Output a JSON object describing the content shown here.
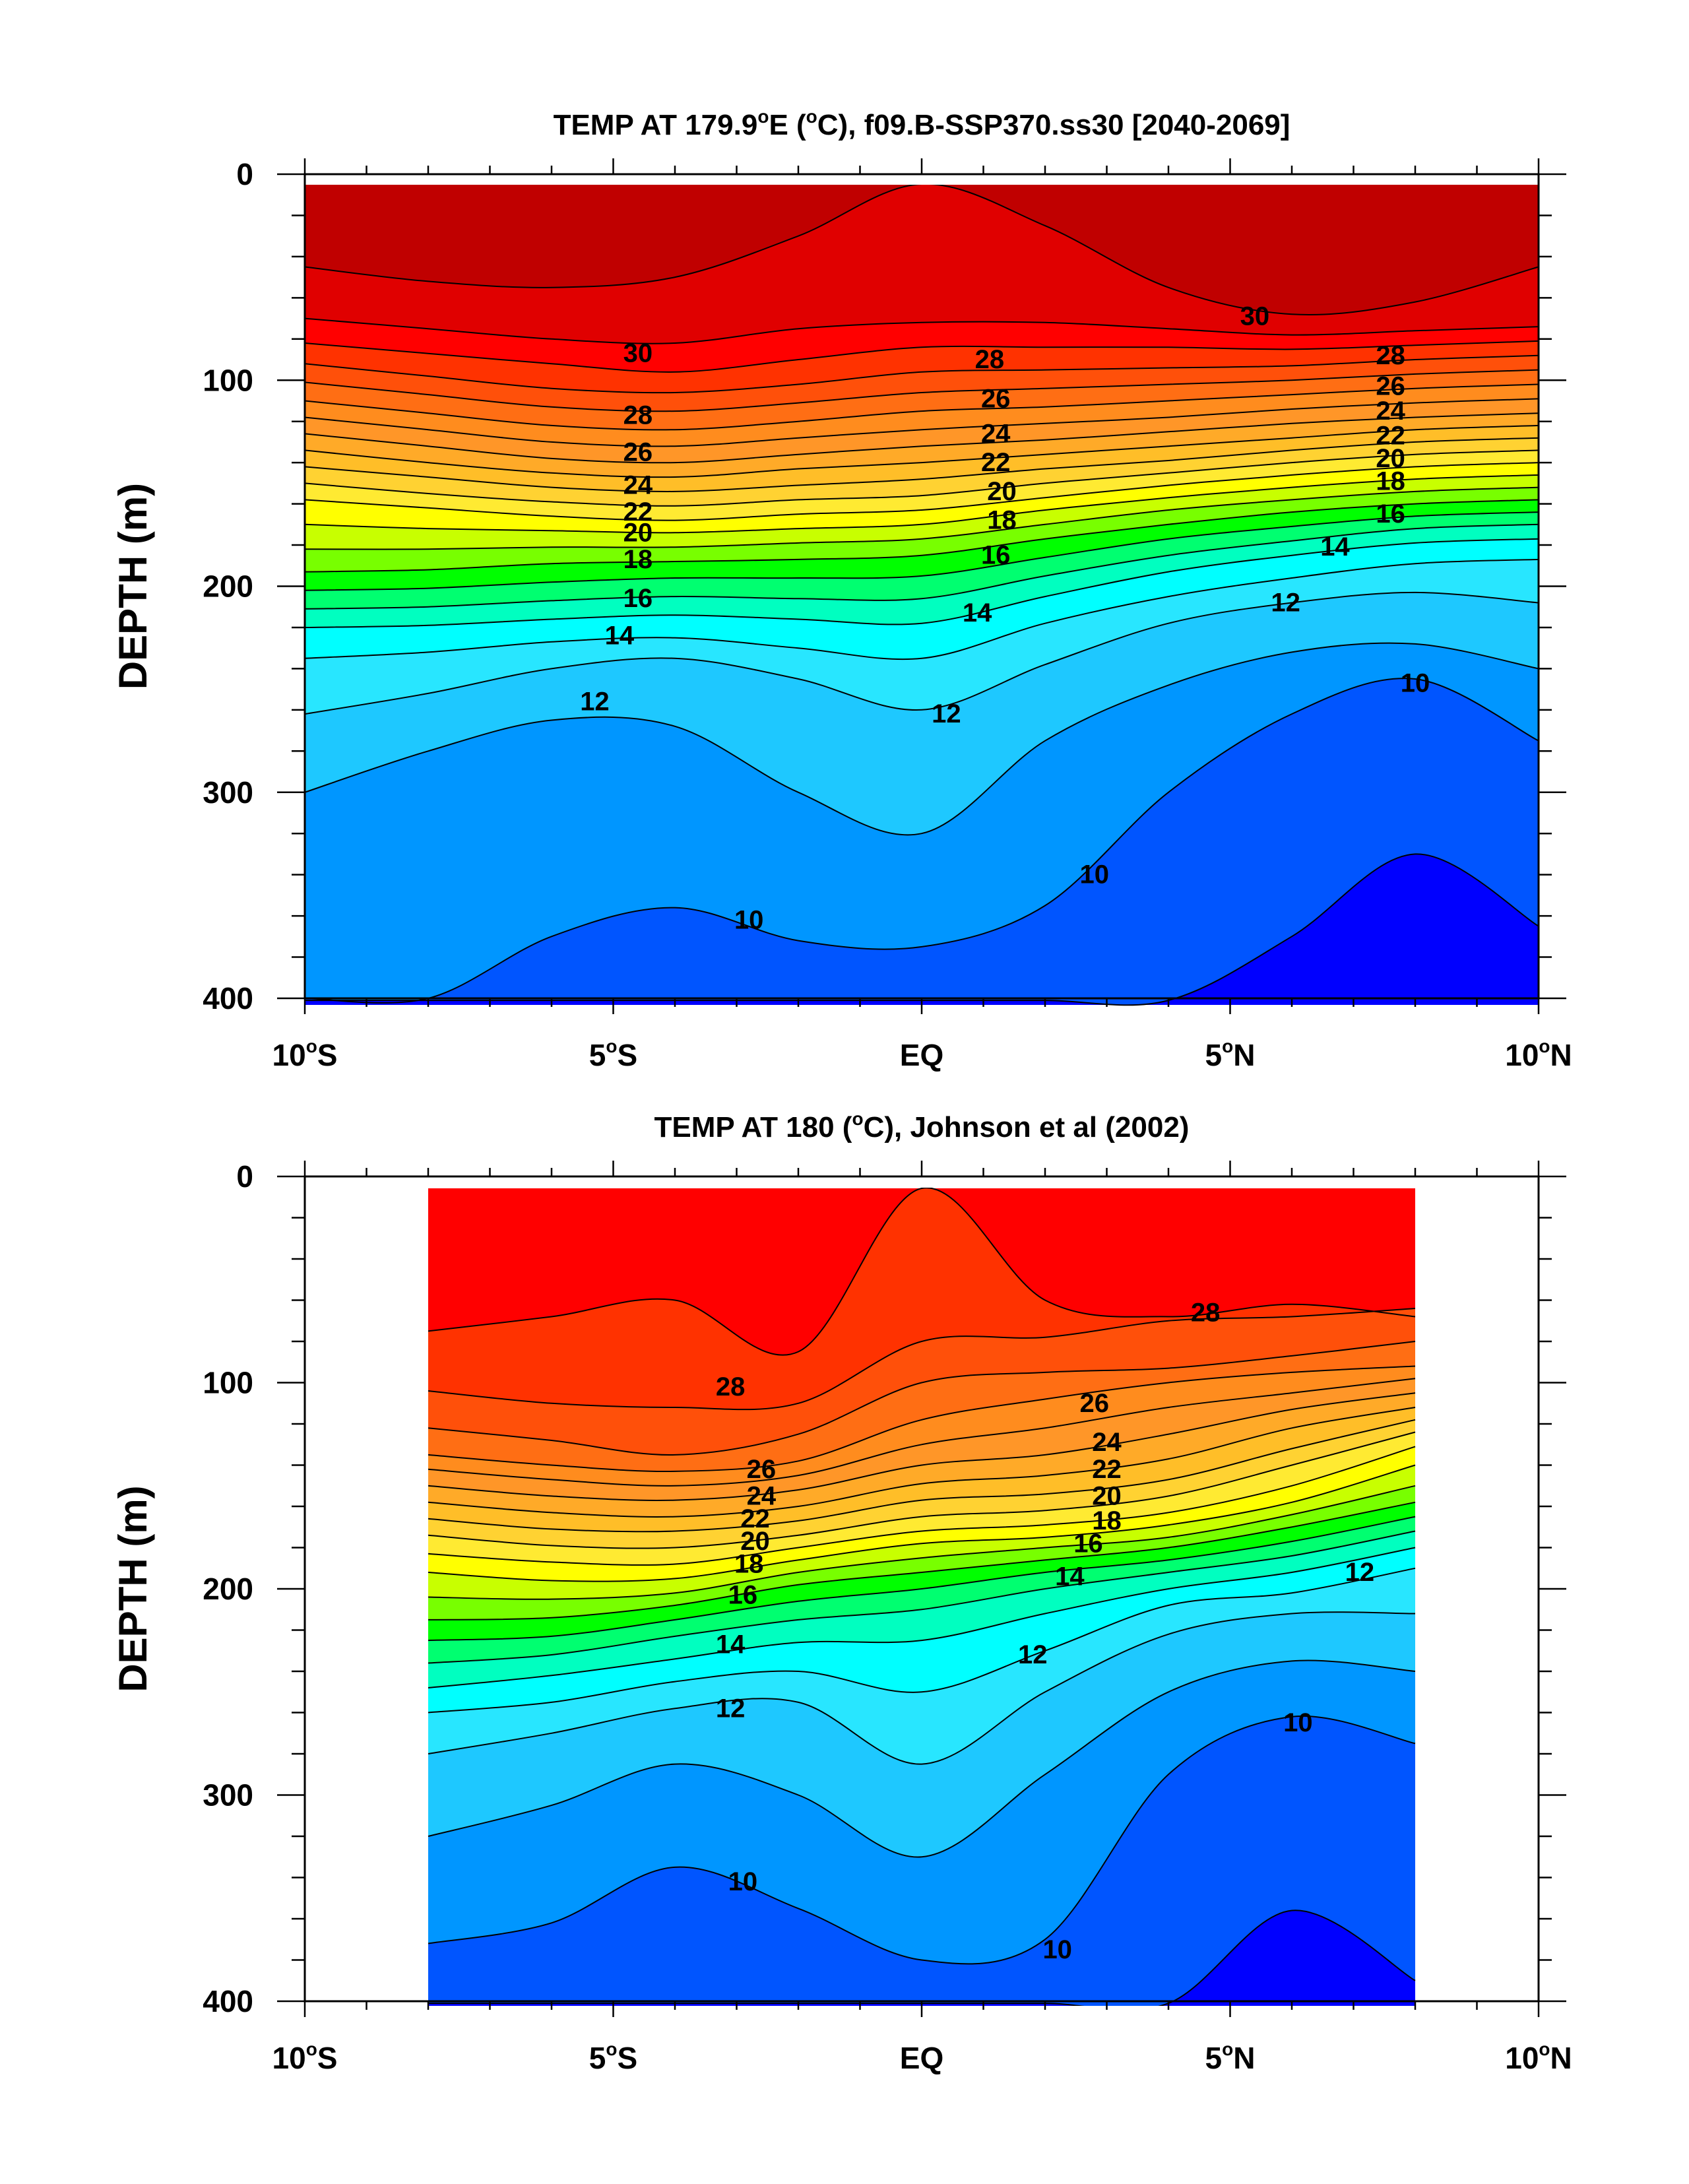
{
  "chart_data": [
    {
      "type": "contour",
      "title": "TEMP AT 179.9°E (°C), f09.B-SSP370.ss30 [2040-2069]",
      "title_parts": [
        "TEMP AT 179.9",
        "o",
        "E (",
        "o",
        "C), f09.B-SSP370.ss30 [2040-2069]"
      ],
      "ylabel": "DEPTH (m)",
      "xlim": [
        -10,
        10
      ],
      "ylim": [
        400,
        0
      ],
      "data_xrange": [
        -10,
        10
      ],
      "x_ticks": [
        {
          "value": -10,
          "label": "10",
          "suffix": "S"
        },
        {
          "value": -5,
          "label": "5",
          "suffix": "S"
        },
        {
          "value": 0,
          "label": "EQ",
          "suffix": ""
        },
        {
          "value": 5,
          "label": "5",
          "suffix": "N"
        },
        {
          "value": 10,
          "label": "10",
          "suffix": "N"
        }
      ],
      "y_ticks": [
        0,
        100,
        200,
        300,
        400
      ],
      "isotherm_depths": {
        "x": [
          -10,
          -8,
          -6,
          -4,
          -2,
          0,
          2,
          4,
          6,
          8,
          10
        ],
        "levels": [
          {
            "t": 31,
            "d": [
              45,
              52,
              55,
              50,
              30,
              0,
              25,
              55,
              68,
              62,
              45
            ]
          },
          {
            "t": 30,
            "d": [
              70,
              75,
              80,
              82,
              75,
              72,
              72,
              75,
              78,
              76,
              74
            ]
          },
          {
            "t": 29,
            "d": [
              82,
              87,
              92,
              96,
              90,
              84,
              84,
              84,
              85,
              83,
              81
            ]
          },
          {
            "t": 28,
            "d": [
              92,
              98,
              104,
              106,
              102,
              96,
              95,
              94,
              93,
              90,
              88
            ]
          },
          {
            "t": 27,
            "d": [
              101,
              107,
              113,
              115,
              111,
              106,
              104,
              102,
              100,
              97,
              95
            ]
          },
          {
            "t": 26,
            "d": [
              110,
              116,
              122,
              124,
              120,
              115,
              113,
              110,
              107,
              104,
              102
            ]
          },
          {
            "t": 25,
            "d": [
              118,
              124,
              130,
              132,
              128,
              124,
              121,
              118,
              114,
              111,
              109
            ]
          },
          {
            "t": 24,
            "d": [
              126,
              132,
              138,
              140,
              136,
              132,
              129,
              125,
              121,
              118,
              116
            ]
          },
          {
            "t": 23,
            "d": [
              134,
              140,
              145,
              147,
              143,
              140,
              136,
              132,
              128,
              124,
              122
            ]
          },
          {
            "t": 22,
            "d": [
              142,
              147,
              152,
              154,
              151,
              148,
              143,
              139,
              134,
              130,
              128
            ]
          },
          {
            "t": 21,
            "d": [
              150,
              155,
              159,
              161,
              158,
              156,
              150,
              145,
              140,
              136,
              134
            ]
          },
          {
            "t": 20,
            "d": [
              158,
              162,
              166,
              168,
              165,
              163,
              157,
              151,
              146,
              142,
              140
            ]
          },
          {
            "t": 19,
            "d": [
              170,
              172,
              173,
              174,
              172,
              170,
              163,
              157,
              152,
              148,
              146
            ]
          },
          {
            "t": 18,
            "d": [
              182,
              182,
              181,
              181,
              179,
              177,
              170,
              163,
              158,
              154,
              152
            ]
          },
          {
            "t": 17,
            "d": [
              193,
              192,
              189,
              188,
              187,
              185,
              177,
              170,
              164,
              160,
              158
            ]
          },
          {
            "t": 16,
            "d": [
              202,
              201,
              198,
              196,
              196,
              195,
              186,
              177,
              171,
              166,
              164
            ]
          },
          {
            "t": 15,
            "d": [
              211,
              210,
              207,
              205,
              206,
              206,
              195,
              185,
              178,
              172,
              170
            ]
          },
          {
            "t": 14,
            "d": [
              220,
              219,
              216,
              214,
              216,
              218,
              205,
              193,
              185,
              179,
              177
            ]
          },
          {
            "t": 13,
            "d": [
              235,
              232,
              227,
              225,
              230,
              235,
              218,
              205,
              196,
              189,
              187
            ]
          },
          {
            "t": 12,
            "d": [
              262,
              252,
              240,
              235,
              245,
              260,
              238,
              218,
              208,
              203,
              208
            ]
          },
          {
            "t": 11,
            "d": [
              300,
              280,
              265,
              268,
              300,
              320,
              275,
              248,
              232,
              228,
              240
            ]
          },
          {
            "t": 10,
            "d": [
              400,
              400,
              370,
              356,
              372,
              375,
              355,
              300,
              262,
              245,
              275
            ]
          },
          {
            "t": 9,
            "d": [
              401,
              401,
              401,
              401,
              401,
              401,
              401,
              401,
              370,
              330,
              365
            ]
          }
        ]
      },
      "contour_labels": [
        {
          "x": -4.6,
          "y": 87,
          "text": "30"
        },
        {
          "x": 5.4,
          "y": 69,
          "text": "30"
        },
        {
          "x": 1.1,
          "y": 90,
          "text": "28"
        },
        {
          "x": 7.6,
          "y": 88,
          "text": "28"
        },
        {
          "x": -4.6,
          "y": 117,
          "text": "28"
        },
        {
          "x": 1.2,
          "y": 109,
          "text": "26"
        },
        {
          "x": 7.6,
          "y": 103,
          "text": "26"
        },
        {
          "x": -4.6,
          "y": 135,
          "text": "26"
        },
        {
          "x": 1.2,
          "y": 126,
          "text": "24"
        },
        {
          "x": 7.6,
          "y": 115,
          "text": "24"
        },
        {
          "x": -4.6,
          "y": 151,
          "text": "24"
        },
        {
          "x": 1.2,
          "y": 140,
          "text": "22"
        },
        {
          "x": 7.6,
          "y": 127,
          "text": "22"
        },
        {
          "x": -4.6,
          "y": 164,
          "text": "22"
        },
        {
          "x": 1.3,
          "y": 154,
          "text": "20"
        },
        {
          "x": 7.6,
          "y": 138,
          "text": "20"
        },
        {
          "x": -4.6,
          "y": 174,
          "text": "20"
        },
        {
          "x": 1.3,
          "y": 168,
          "text": "18"
        },
        {
          "x": 7.6,
          "y": 149,
          "text": "18"
        },
        {
          "x": -4.6,
          "y": 187,
          "text": "18"
        },
        {
          "x": 1.2,
          "y": 185,
          "text": "16"
        },
        {
          "x": 7.6,
          "y": 165,
          "text": "16"
        },
        {
          "x": -4.6,
          "y": 206,
          "text": "16"
        },
        {
          "x": 0.9,
          "y": 213,
          "text": "14"
        },
        {
          "x": 6.7,
          "y": 181,
          "text": "14"
        },
        {
          "x": -4.9,
          "y": 224,
          "text": "14"
        },
        {
          "x": 0.4,
          "y": 262,
          "text": "12"
        },
        {
          "x": 5.9,
          "y": 208,
          "text": "12"
        },
        {
          "x": -5.3,
          "y": 256,
          "text": "12"
        },
        {
          "x": -2.8,
          "y": 362,
          "text": "10"
        },
        {
          "x": 2.8,
          "y": 340,
          "text": "10"
        },
        {
          "x": 8.0,
          "y": 247,
          "text": "10"
        }
      ]
    },
    {
      "type": "contour",
      "title": "TEMP AT 180 (°C), Johnson et al (2002)",
      "title_parts": [
        "TEMP AT 180 (",
        "o",
        "C), Johnson et al (2002)"
      ],
      "ylabel": "DEPTH (m)",
      "xlim": [
        -10,
        10
      ],
      "ylim": [
        400,
        0
      ],
      "data_xrange": [
        -8,
        8
      ],
      "x_ticks": [
        {
          "value": -10,
          "label": "10",
          "suffix": "S"
        },
        {
          "value": -5,
          "label": "5",
          "suffix": "S"
        },
        {
          "value": 0,
          "label": "EQ",
          "suffix": ""
        },
        {
          "value": 5,
          "label": "5",
          "suffix": "N"
        },
        {
          "value": 10,
          "label": "10",
          "suffix": "N"
        }
      ],
      "y_ticks": [
        0,
        100,
        200,
        300,
        400
      ],
      "isotherm_depths": {
        "x": [
          -8,
          -6,
          -4,
          -2,
          0,
          2,
          4,
          6,
          8
        ],
        "levels": [
          {
            "t": 29,
            "d": [
              75,
              68,
              60,
              85,
              0,
              60,
              68,
              62,
              68
            ]
          },
          {
            "t": 28,
            "d": [
              104,
              110,
              112,
              110,
              80,
              78,
              70,
              68,
              64
            ]
          },
          {
            "t": 27,
            "d": [
              122,
              128,
              135,
              125,
              100,
              95,
              93,
              87,
              80
            ]
          },
          {
            "t": 26,
            "d": [
              135,
              140,
              143,
              138,
              118,
              108,
              100,
              95,
              92
            ]
          },
          {
            "t": 25,
            "d": [
              142,
              147,
              150,
              145,
              130,
              122,
              112,
              105,
              98
            ]
          },
          {
            "t": 24,
            "d": [
              150,
              155,
              157,
              152,
              140,
              135,
              125,
              113,
              105
            ]
          },
          {
            "t": 23,
            "d": [
              158,
              163,
              165,
              160,
              149,
              145,
              137,
              122,
              112
            ]
          },
          {
            "t": 22,
            "d": [
              166,
              171,
              172,
              167,
              157,
              154,
              147,
              132,
              118
            ]
          },
          {
            "t": 21,
            "d": [
              174,
              179,
              180,
              174,
              165,
              162,
              155,
              140,
              124
            ]
          },
          {
            "t": 20,
            "d": [
              183,
              187,
              188,
              180,
              172,
              169,
              163,
              150,
              131
            ]
          },
          {
            "t": 19,
            "d": [
              192,
              196,
              195,
              186,
              178,
              175,
              169,
              158,
              140
            ]
          },
          {
            "t": 18,
            "d": [
              204,
              205,
              202,
              192,
              185,
              180,
              175,
              164,
              150
            ]
          },
          {
            "t": 17,
            "d": [
              215,
              214,
              208,
              198,
              192,
              186,
              180,
              170,
              158
            ]
          },
          {
            "t": 16,
            "d": [
              225,
              223,
              215,
              206,
              200,
              192,
              186,
              177,
              165
            ]
          },
          {
            "t": 15,
            "d": [
              236,
              232,
              223,
              215,
              210,
              200,
              192,
              184,
              172
            ]
          },
          {
            "t": 14,
            "d": [
              248,
              242,
              234,
              226,
              225,
              212,
              200,
              192,
              180
            ]
          },
          {
            "t": 13,
            "d": [
              260,
              255,
              245,
              240,
              250,
              230,
              208,
              202,
              190
            ]
          },
          {
            "t": 12,
            "d": [
              280,
              270,
              258,
              255,
              285,
              250,
              222,
              212,
              212
            ]
          },
          {
            "t": 11,
            "d": [
              320,
              305,
              285,
              300,
              330,
              290,
              250,
              235,
              240
            ]
          },
          {
            "t": 10,
            "d": [
              372,
              362,
              335,
              355,
              380,
              370,
              290,
              262,
              275
            ]
          },
          {
            "t": 9,
            "d": [
              401,
              401,
              401,
              401,
              401,
              401,
              401,
              356,
              390
            ]
          }
        ]
      },
      "contour_labels": [
        {
          "x": 4.6,
          "y": 66,
          "text": "28"
        },
        {
          "x": -3.1,
          "y": 102,
          "text": "28"
        },
        {
          "x": 2.8,
          "y": 110,
          "text": "26"
        },
        {
          "x": -2.6,
          "y": 142,
          "text": "26"
        },
        {
          "x": 3.0,
          "y": 129,
          "text": "24"
        },
        {
          "x": -2.6,
          "y": 155,
          "text": "24"
        },
        {
          "x": 3.0,
          "y": 142,
          "text": "22"
        },
        {
          "x": -2.7,
          "y": 166,
          "text": "22"
        },
        {
          "x": 3.0,
          "y": 155,
          "text": "20"
        },
        {
          "x": -2.7,
          "y": 177,
          "text": "20"
        },
        {
          "x": 3.0,
          "y": 167,
          "text": "18"
        },
        {
          "x": -2.8,
          "y": 188,
          "text": "18"
        },
        {
          "x": 2.7,
          "y": 178,
          "text": "16"
        },
        {
          "x": -2.9,
          "y": 203,
          "text": "16"
        },
        {
          "x": 2.4,
          "y": 194,
          "text": "14"
        },
        {
          "x": -3.1,
          "y": 227,
          "text": "14"
        },
        {
          "x": 1.8,
          "y": 232,
          "text": "12"
        },
        {
          "x": -3.1,
          "y": 258,
          "text": "12"
        },
        {
          "x": 7.1,
          "y": 192,
          "text": "12"
        },
        {
          "x": -2.9,
          "y": 342,
          "text": "10"
        },
        {
          "x": 2.2,
          "y": 375,
          "text": "10"
        },
        {
          "x": 6.1,
          "y": 265,
          "text": "10"
        }
      ]
    }
  ]
}
